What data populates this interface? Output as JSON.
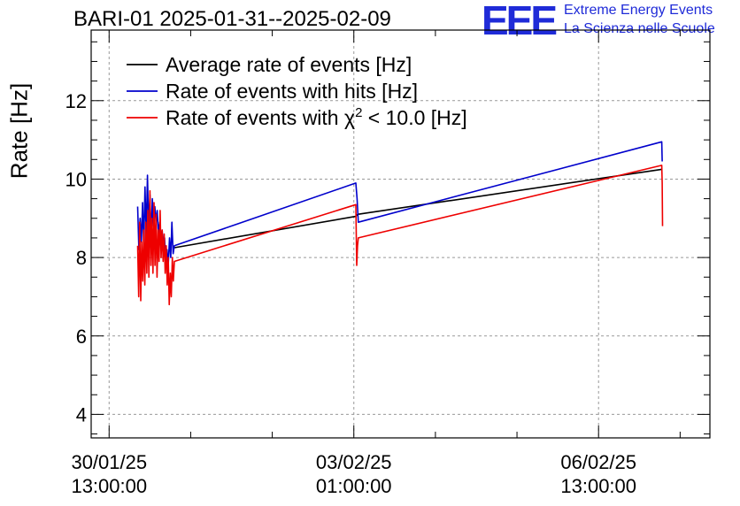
{
  "header": {
    "title": "BARI-01 2025-01-31--2025-02-09",
    "logo_text": "EEE",
    "logo_line1": "Extreme Energy Events",
    "logo_line2": "La Scienza nelle Scuole"
  },
  "chart_data": {
    "type": "line",
    "title": "BARI-01 2025-01-31--2025-02-09",
    "xlabel": "",
    "ylabel": "Rate [Hz]",
    "xlim": [
      -4.4,
      147.3
    ],
    "ylim": [
      3.4,
      13.8
    ],
    "x_unit": "hours since 30/01/25 13:00:00",
    "grid": true,
    "legend_position": "top-left",
    "y_ticks": [
      4,
      6,
      8,
      10,
      12
    ],
    "x_ticks": [
      {
        "value": 0,
        "line1": "30/01/25",
        "line2": "13:00:00"
      },
      {
        "value": 60,
        "line1": "03/02/25",
        "line2": "01:00:00"
      },
      {
        "value": 120,
        "line1": "06/02/25",
        "line2": "13:00:00"
      }
    ],
    "legend": [
      {
        "name": "Average rate of events [Hz]",
        "color": "#000000"
      },
      {
        "name": "Rate of events with hits [Hz]",
        "color": "#0000cc"
      },
      {
        "name": "Rate of events with χ",
        "sup": "2",
        "suffix": " < 10.0 [Hz]",
        "color": "#ee0000"
      }
    ],
    "series": [
      {
        "name": "Average rate of events [Hz]",
        "color": "#000000",
        "x": [
          16.0,
          60.5,
          60.9,
          135.5
        ],
        "y": [
          8.25,
          9.05,
          9.1,
          10.25
        ]
      },
      {
        "name": "Rate of events with hits [Hz]",
        "color": "#0000cc",
        "x": [
          7.0,
          7.3,
          7.6,
          7.9,
          8.2,
          8.5,
          8.8,
          9.1,
          9.4,
          9.7,
          10.0,
          10.3,
          10.6,
          10.9,
          11.2,
          11.5,
          11.8,
          12.1,
          12.4,
          12.7,
          13.0,
          13.3,
          13.6,
          13.9,
          14.2,
          14.5,
          14.8,
          15.1,
          15.4,
          15.7,
          16.0,
          60.5,
          60.8,
          61.1,
          135.5,
          135.6
        ],
        "y": [
          9.3,
          8.2,
          9.0,
          8.4,
          9.4,
          8.3,
          9.8,
          8.6,
          10.1,
          8.7,
          9.6,
          8.5,
          9.5,
          8.8,
          9.3,
          8.9,
          9.2,
          8.6,
          8.9,
          8.5,
          8.7,
          8.2,
          8.5,
          7.9,
          8.2,
          7.8,
          8.5,
          8.0,
          8.9,
          8.1,
          8.3,
          9.9,
          9.5,
          8.9,
          10.95,
          10.45
        ]
      },
      {
        "name": "Rate of events with χ² < 10.0 [Hz]",
        "color": "#ee0000",
        "x": [
          7.0,
          7.25,
          7.5,
          7.75,
          8.0,
          8.25,
          8.5,
          8.75,
          9.0,
          9.25,
          9.5,
          9.75,
          10.0,
          10.25,
          10.5,
          10.75,
          11.0,
          11.25,
          11.5,
          11.75,
          12.0,
          12.25,
          12.5,
          12.75,
          13.0,
          13.25,
          13.5,
          13.75,
          14.0,
          14.25,
          14.5,
          14.75,
          15.0,
          15.25,
          15.5,
          15.75,
          16.0,
          60.5,
          60.7,
          60.9,
          61.1,
          135.5,
          135.6,
          135.7
        ],
        "y": [
          8.3,
          7.0,
          8.9,
          6.9,
          8.4,
          7.4,
          8.7,
          7.3,
          8.9,
          7.6,
          9.2,
          7.5,
          9.7,
          7.8,
          9.0,
          7.6,
          9.4,
          7.8,
          9.1,
          7.5,
          8.7,
          7.9,
          9.2,
          8.0,
          8.7,
          7.9,
          8.6,
          7.6,
          8.3,
          7.3,
          8.0,
          6.8,
          7.6,
          7.0,
          8.0,
          7.4,
          7.9,
          9.35,
          7.8,
          8.3,
          8.5,
          10.35,
          9.9,
          8.8
        ]
      }
    ]
  }
}
